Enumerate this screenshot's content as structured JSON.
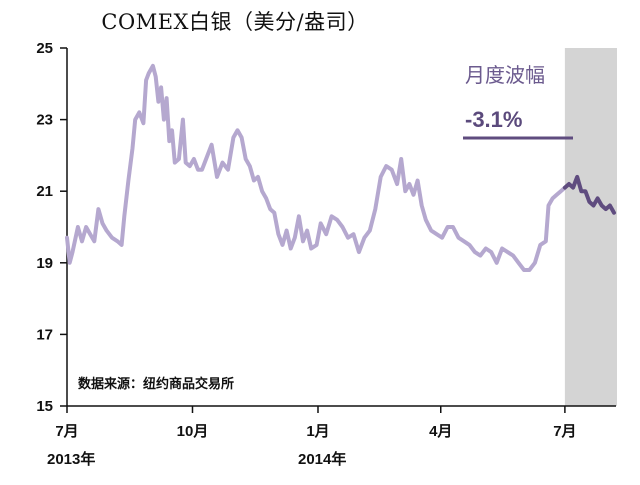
{
  "title": "COMEX白银（美分/盎司）",
  "source_note": "数据来源：纽约商品交易所",
  "annotation": {
    "label": "月度波幅",
    "value": "-3.1%"
  },
  "colors": {
    "main_line": "#b5a8cf",
    "recent_line": "#5f4c7f",
    "shade": "#d4d4d4",
    "annotation_text": "#6b5a8e",
    "axis": "#111111"
  },
  "chart_data": {
    "type": "line",
    "title": "COMEX白银（美分/盎司）",
    "xlabel": "",
    "ylabel": "",
    "ylim": [
      15,
      25
    ],
    "yticks": [
      15,
      17,
      19,
      21,
      23,
      25
    ],
    "x_ticks": [
      {
        "label": "7月",
        "year": "2013年",
        "x": "2013-07-01"
      },
      {
        "label": "10月",
        "year": "",
        "x": "2013-10-01"
      },
      {
        "label": "1月",
        "year": "2014年",
        "x": "2014-01-01"
      },
      {
        "label": "4月",
        "year": "",
        "x": "2014-04-01"
      },
      {
        "label": "7月",
        "year": "",
        "x": "2014-07-01"
      }
    ],
    "xlim": [
      "2013-07-01",
      "2014-08-06"
    ],
    "grid": false,
    "highlight_period": [
      "2014-07-01",
      "2014-08-06"
    ],
    "series": [
      {
        "role": "history",
        "points": [
          [
            "2013-07-01",
            19.7
          ],
          [
            "2013-07-03",
            19.0
          ],
          [
            "2013-07-05",
            19.3
          ],
          [
            "2013-07-09",
            20.0
          ],
          [
            "2013-07-12",
            19.6
          ],
          [
            "2013-07-15",
            20.0
          ],
          [
            "2013-07-18",
            19.8
          ],
          [
            "2013-07-21",
            19.6
          ],
          [
            "2013-07-24",
            20.5
          ],
          [
            "2013-07-27",
            20.1
          ],
          [
            "2013-07-30",
            19.9
          ],
          [
            "2013-08-03",
            19.7
          ],
          [
            "2013-08-07",
            19.6
          ],
          [
            "2013-08-10",
            19.5
          ],
          [
            "2013-08-12",
            20.3
          ],
          [
            "2013-08-15",
            21.3
          ],
          [
            "2013-08-18",
            22.2
          ],
          [
            "2013-08-20",
            23.0
          ],
          [
            "2013-08-23",
            23.2
          ],
          [
            "2013-08-26",
            22.9
          ],
          [
            "2013-08-28",
            24.1
          ],
          [
            "2013-08-30",
            24.3
          ],
          [
            "2013-09-02",
            24.5
          ],
          [
            "2013-09-04",
            24.2
          ],
          [
            "2013-09-06",
            23.5
          ],
          [
            "2013-09-08",
            23.9
          ],
          [
            "2013-09-10",
            23.0
          ],
          [
            "2013-09-12",
            23.6
          ],
          [
            "2013-09-14",
            22.4
          ],
          [
            "2013-09-16",
            22.7
          ],
          [
            "2013-09-18",
            21.8
          ],
          [
            "2013-09-21",
            21.9
          ],
          [
            "2013-09-24",
            23.0
          ],
          [
            "2013-09-26",
            21.8
          ],
          [
            "2013-09-29",
            21.7
          ],
          [
            "2013-10-02",
            21.9
          ],
          [
            "2013-10-05",
            21.6
          ],
          [
            "2013-10-08",
            21.6
          ],
          [
            "2013-10-11",
            21.9
          ],
          [
            "2013-10-15",
            22.3
          ],
          [
            "2013-10-19",
            21.4
          ],
          [
            "2013-10-23",
            21.8
          ],
          [
            "2013-10-27",
            21.6
          ],
          [
            "2013-10-31",
            22.5
          ],
          [
            "2013-11-03",
            22.7
          ],
          [
            "2013-11-06",
            22.5
          ],
          [
            "2013-11-09",
            21.9
          ],
          [
            "2013-11-12",
            21.7
          ],
          [
            "2013-11-15",
            21.3
          ],
          [
            "2013-11-18",
            21.4
          ],
          [
            "2013-11-21",
            21.0
          ],
          [
            "2013-11-24",
            20.8
          ],
          [
            "2013-11-27",
            20.5
          ],
          [
            "2013-11-30",
            20.4
          ],
          [
            "2013-12-03",
            19.8
          ],
          [
            "2013-12-06",
            19.5
          ],
          [
            "2013-12-09",
            19.9
          ],
          [
            "2013-12-12",
            19.4
          ],
          [
            "2013-12-15",
            19.7
          ],
          [
            "2013-12-18",
            20.3
          ],
          [
            "2013-12-21",
            19.6
          ],
          [
            "2013-12-24",
            19.9
          ],
          [
            "2013-12-27",
            19.4
          ],
          [
            "2013-12-31",
            19.5
          ],
          [
            "2014-01-03",
            20.1
          ],
          [
            "2014-01-07",
            19.8
          ],
          [
            "2014-01-11",
            20.3
          ],
          [
            "2014-01-15",
            20.2
          ],
          [
            "2014-01-19",
            20.0
          ],
          [
            "2014-01-23",
            19.7
          ],
          [
            "2014-01-27",
            19.8
          ],
          [
            "2014-01-31",
            19.3
          ],
          [
            "2014-02-04",
            19.7
          ],
          [
            "2014-02-08",
            19.9
          ],
          [
            "2014-02-12",
            20.5
          ],
          [
            "2014-02-16",
            21.4
          ],
          [
            "2014-02-20",
            21.7
          ],
          [
            "2014-02-24",
            21.6
          ],
          [
            "2014-02-28",
            21.2
          ],
          [
            "2014-03-03",
            21.9
          ],
          [
            "2014-03-06",
            21.0
          ],
          [
            "2014-03-09",
            21.2
          ],
          [
            "2014-03-12",
            20.9
          ],
          [
            "2014-03-15",
            21.3
          ],
          [
            "2014-03-18",
            20.6
          ],
          [
            "2014-03-21",
            20.2
          ],
          [
            "2014-03-25",
            19.9
          ],
          [
            "2014-03-29",
            19.8
          ],
          [
            "2014-04-02",
            19.7
          ],
          [
            "2014-04-06",
            20.0
          ],
          [
            "2014-04-10",
            20.0
          ],
          [
            "2014-04-14",
            19.7
          ],
          [
            "2014-04-18",
            19.6
          ],
          [
            "2014-04-22",
            19.5
          ],
          [
            "2014-04-26",
            19.3
          ],
          [
            "2014-04-30",
            19.2
          ],
          [
            "2014-05-04",
            19.4
          ],
          [
            "2014-05-08",
            19.3
          ],
          [
            "2014-05-12",
            19.0
          ],
          [
            "2014-05-16",
            19.4
          ],
          [
            "2014-05-20",
            19.3
          ],
          [
            "2014-05-24",
            19.2
          ],
          [
            "2014-05-28",
            19.0
          ],
          [
            "2014-06-01",
            18.8
          ],
          [
            "2014-06-05",
            18.8
          ],
          [
            "2014-06-09",
            19.0
          ],
          [
            "2014-06-13",
            19.5
          ],
          [
            "2014-06-17",
            19.6
          ],
          [
            "2014-06-19",
            20.6
          ],
          [
            "2014-06-22",
            20.8
          ],
          [
            "2014-06-25",
            20.9
          ],
          [
            "2014-06-28",
            21.0
          ],
          [
            "2014-07-01",
            21.1
          ]
        ]
      },
      {
        "role": "recent",
        "points": [
          [
            "2014-07-01",
            21.1
          ],
          [
            "2014-07-04",
            21.2
          ],
          [
            "2014-07-07",
            21.1
          ],
          [
            "2014-07-10",
            21.4
          ],
          [
            "2014-07-13",
            21.0
          ],
          [
            "2014-07-16",
            21.0
          ],
          [
            "2014-07-19",
            20.7
          ],
          [
            "2014-07-22",
            20.6
          ],
          [
            "2014-07-25",
            20.8
          ],
          [
            "2014-07-28",
            20.6
          ],
          [
            "2014-07-31",
            20.5
          ],
          [
            "2014-08-03",
            20.6
          ],
          [
            "2014-08-06",
            20.4
          ]
        ]
      }
    ]
  }
}
